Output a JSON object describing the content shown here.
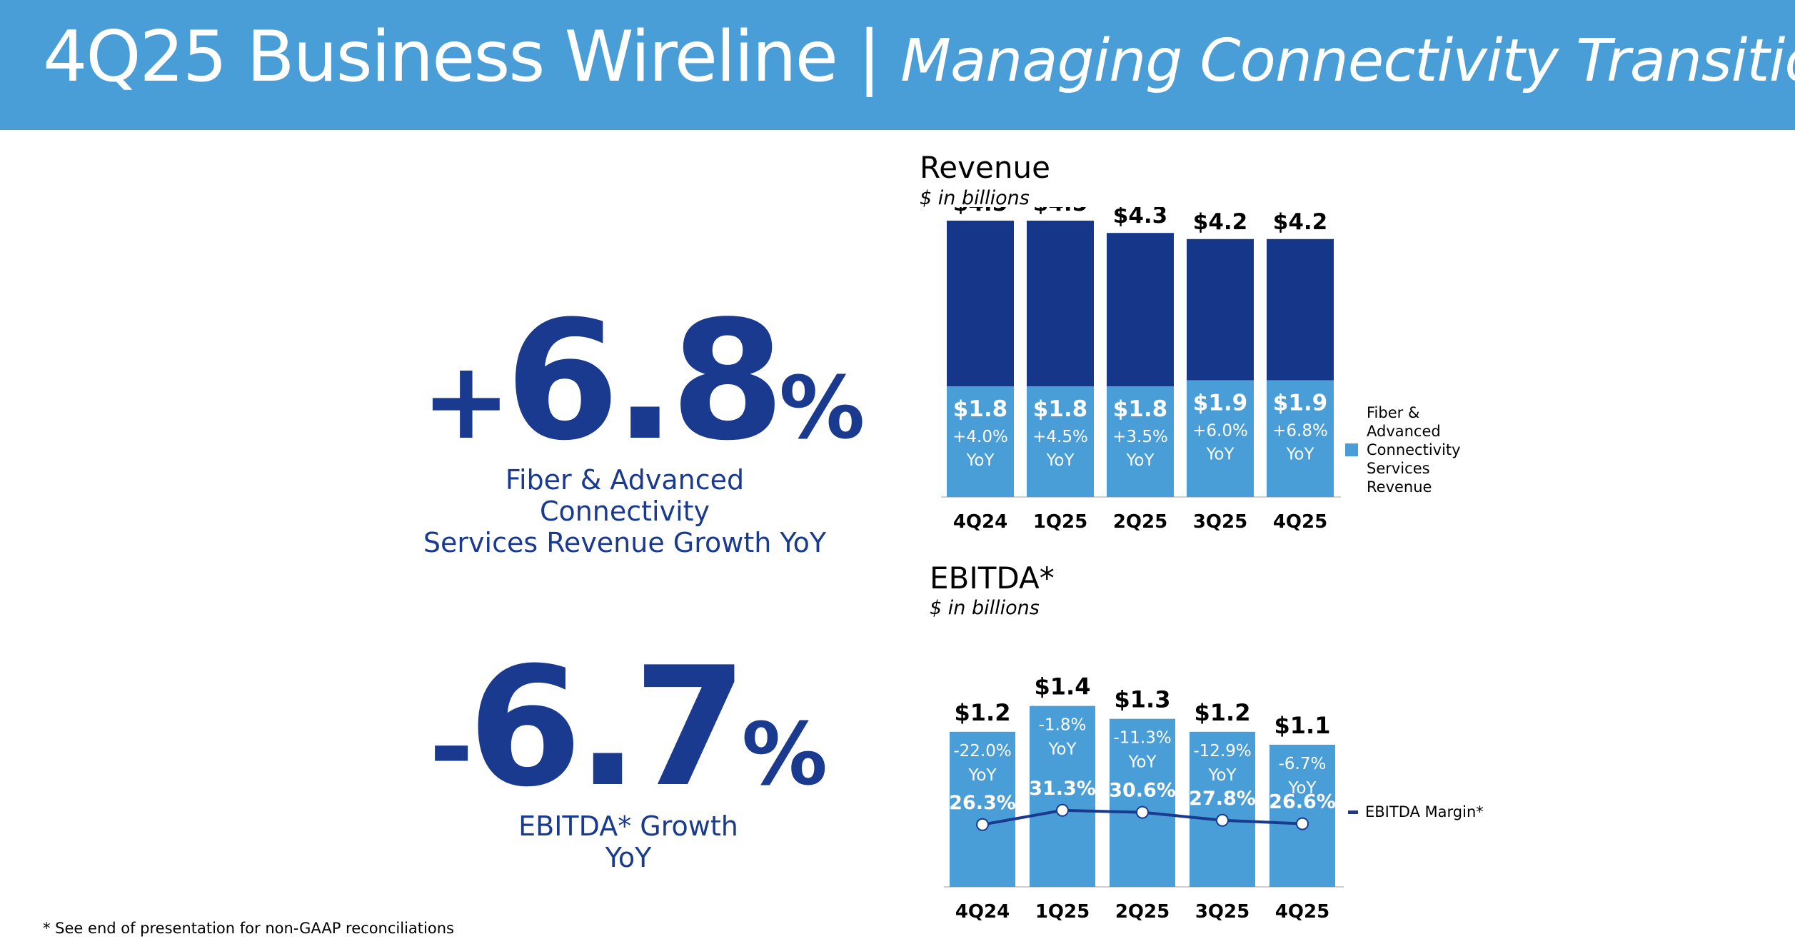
{
  "header": {
    "title": "4Q25 Business Wireline",
    "separator": "|",
    "subtitle": "Managing Connectivity Transition"
  },
  "kpis": [
    {
      "sign": "+",
      "number": "6.8",
      "pct": "%",
      "label_lines": [
        "Fiber & Advanced Connectivity",
        "Services Revenue Growth YoY"
      ]
    },
    {
      "sign": "-",
      "number": "6.7",
      "pct": "%",
      "label_lines": [
        "EBITDA* Growth",
        "YoY"
      ]
    }
  ],
  "colors": {
    "dark_bar": "#16368a",
    "light_bar": "#4a9ed8",
    "kpi_text": "#1a3a8f",
    "header_bg": "#4a9ed8",
    "margin_line": "#1a3a8f"
  },
  "chart_data": [
    {
      "type": "bar",
      "stacked": true,
      "title": "Revenue",
      "unit": "$ in billions",
      "categories": [
        "4Q24",
        "1Q25",
        "2Q25",
        "3Q25",
        "4Q25"
      ],
      "totals": [
        4.5,
        4.5,
        4.3,
        4.2,
        4.2
      ],
      "total_labels": [
        "$4.5",
        "$4.5",
        "$4.3",
        "$4.2",
        "$4.2"
      ],
      "series": [
        {
          "name": "Fiber & Advanced Connectivity Services Revenue",
          "values": [
            1.8,
            1.8,
            1.8,
            1.9,
            1.9
          ],
          "labels": [
            "$1.8",
            "$1.8",
            "$1.8",
            "$1.9",
            "$1.9"
          ],
          "growth": [
            "+4.0%",
            "+4.5%",
            "+3.5%",
            "+6.0%",
            "+6.8%"
          ]
        }
      ],
      "growth_suffix": "YoY",
      "legend": {
        "lines": [
          "Fiber &",
          "Advanced",
          "Connectivity",
          "Services",
          "Revenue"
        ],
        "placement": "right"
      }
    },
    {
      "type": "bar",
      "title": "EBITDA*",
      "unit": "$ in billions",
      "categories": [
        "4Q24",
        "1Q25",
        "2Q25",
        "3Q25",
        "4Q25"
      ],
      "values": [
        1.2,
        1.4,
        1.3,
        1.2,
        1.1
      ],
      "value_labels": [
        "$1.2",
        "$1.4",
        "$1.3",
        "$1.2",
        "$1.1"
      ],
      "growth": [
        "-22.0%",
        "-1.8%",
        "-11.3%",
        "-12.9%",
        "-6.7%"
      ],
      "growth_suffix": "YoY",
      "margin_series": {
        "name": "EBITDA Margin*",
        "values": [
          26.3,
          31.3,
          30.6,
          27.8,
          26.6
        ],
        "labels": [
          "26.3%",
          "31.3%",
          "30.6%",
          "27.8%",
          "26.6%"
        ]
      },
      "legend": {
        "text": "EBITDA Margin*",
        "placement": "right"
      }
    }
  ],
  "footnote": "* See end of presentation for non-GAAP reconciliations"
}
